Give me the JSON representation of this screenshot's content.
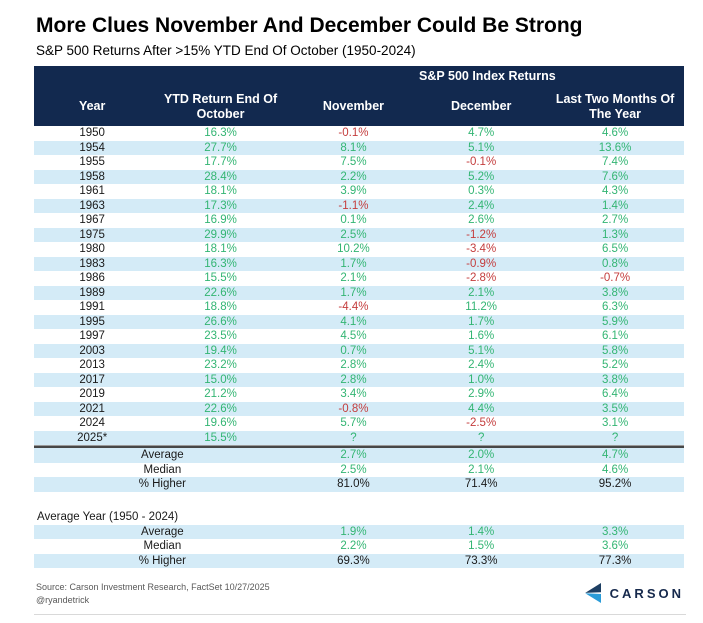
{
  "page": {
    "title": "More Clues November And December Could Be Strong",
    "subtitle": "S&P 500 Returns After >15% YTD End Of October (1950-2024)"
  },
  "colors": {
    "navy": "#12294f",
    "stripe": "#d4ebf7",
    "green": "#33b573",
    "red": "#c43d3d",
    "logo_arrow_top": "#1d3f63",
    "logo_arrow_bottom": "#2b9cd8",
    "logo_text_color": "#16294c"
  },
  "chart_data": {
    "type": "table",
    "group_header": "S&P 500 Index Returns",
    "columns": [
      "Year",
      "YTD Return End Of October",
      "November",
      "December",
      "Last Two Months Of The Year"
    ],
    "rows": [
      [
        "1950",
        "16.3%",
        "-0.1%",
        "4.7%",
        "4.6%"
      ],
      [
        "1954",
        "27.7%",
        "8.1%",
        "5.1%",
        "13.6%"
      ],
      [
        "1955",
        "17.7%",
        "7.5%",
        "-0.1%",
        "7.4%"
      ],
      [
        "1958",
        "28.4%",
        "2.2%",
        "5.2%",
        "7.6%"
      ],
      [
        "1961",
        "18.1%",
        "3.9%",
        "0.3%",
        "4.3%"
      ],
      [
        "1963",
        "17.3%",
        "-1.1%",
        "2.4%",
        "1.4%"
      ],
      [
        "1967",
        "16.9%",
        "0.1%",
        "2.6%",
        "2.7%"
      ],
      [
        "1975",
        "29.9%",
        "2.5%",
        "-1.2%",
        "1.3%"
      ],
      [
        "1980",
        "18.1%",
        "10.2%",
        "-3.4%",
        "6.5%"
      ],
      [
        "1983",
        "16.3%",
        "1.7%",
        "-0.9%",
        "0.8%"
      ],
      [
        "1986",
        "15.5%",
        "2.1%",
        "-2.8%",
        "-0.7%"
      ],
      [
        "1989",
        "22.6%",
        "1.7%",
        "2.1%",
        "3.8%"
      ],
      [
        "1991",
        "18.8%",
        "-4.4%",
        "11.2%",
        "6.3%"
      ],
      [
        "1995",
        "26.6%",
        "4.1%",
        "1.7%",
        "5.9%"
      ],
      [
        "1997",
        "23.5%",
        "4.5%",
        "1.6%",
        "6.1%"
      ],
      [
        "2003",
        "19.4%",
        "0.7%",
        "5.1%",
        "5.8%"
      ],
      [
        "2013",
        "23.2%",
        "2.8%",
        "2.4%",
        "5.2%"
      ],
      [
        "2017",
        "15.0%",
        "2.8%",
        "1.0%",
        "3.8%"
      ],
      [
        "2019",
        "21.2%",
        "3.4%",
        "2.9%",
        "6.4%"
      ],
      [
        "2021",
        "22.6%",
        "-0.8%",
        "4.4%",
        "3.5%"
      ],
      [
        "2024",
        "19.6%",
        "5.7%",
        "-2.5%",
        "3.1%"
      ],
      [
        "2025*",
        "15.5%",
        "?",
        "?",
        "?"
      ]
    ],
    "summary_rows": [
      {
        "label": "Average",
        "values": [
          "2.7%",
          "2.0%",
          "4.7%"
        ],
        "value_color": "green"
      },
      {
        "label": "Median",
        "values": [
          "2.5%",
          "2.1%",
          "4.6%"
        ],
        "value_color": "green"
      },
      {
        "label": "% Higher",
        "values": [
          "81.0%",
          "71.4%",
          "95.2%"
        ],
        "value_color": "black"
      }
    ],
    "average_year_label": "Average Year (1950 - 2024)",
    "average_year_rows": [
      {
        "label": "Average",
        "values": [
          "1.9%",
          "1.4%",
          "3.3%"
        ],
        "value_color": "green"
      },
      {
        "label": "Median",
        "values": [
          "2.2%",
          "1.5%",
          "3.6%"
        ],
        "value_color": "green"
      },
      {
        "label": "% Higher",
        "values": [
          "69.3%",
          "73.3%",
          "77.3%"
        ],
        "value_color": "black"
      }
    ]
  },
  "footer": {
    "source": "Source: Carson Investment Research, FactSet 10/27/2025",
    "handle": "@ryandetrick",
    "logo_icon": "carson-arrow-icon",
    "logo_text": "CARSON"
  }
}
